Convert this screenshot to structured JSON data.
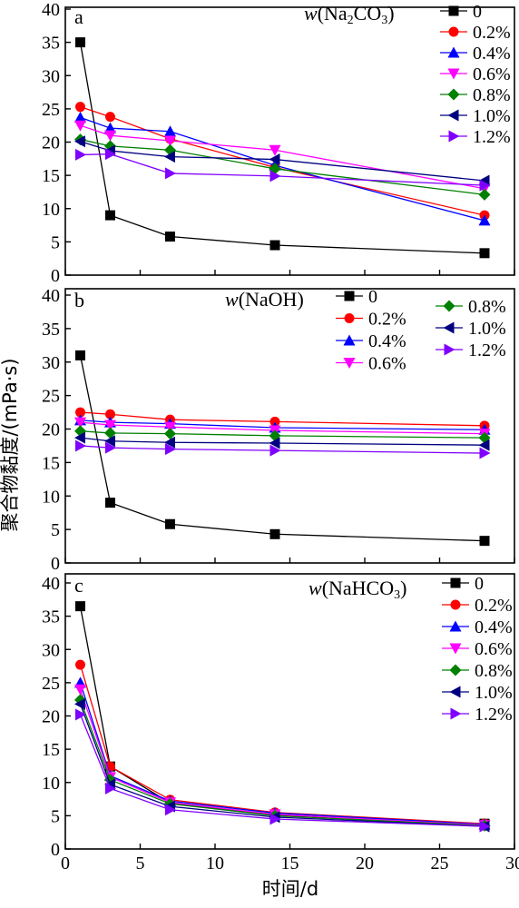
{
  "chart_data": {
    "type": "line",
    "xlabel": "时间/d",
    "ylabel": "聚合物黏度/(mPa·s)",
    "xlim": [
      0,
      30
    ],
    "xticks": [
      "0",
      "5",
      "10",
      "15",
      "20",
      "25",
      "30"
    ],
    "yticks": [
      "0",
      "5",
      "10",
      "15",
      "20",
      "25",
      "30",
      "35",
      "40"
    ],
    "colors": {
      "0": "#000000",
      "0.2%": "#ff0000",
      "0.4%": "#0000ff",
      "0.6%": "#ff00ff",
      "0.8%": "#008000",
      "1.0%": "#000080",
      "1.2%": "#8000ff"
    },
    "markers": {
      "0": "square",
      "0.2%": "circle",
      "0.4%": "triangle-up",
      "0.6%": "triangle-down",
      "0.8%": "diamond",
      "1.0%": "triangle-left",
      "1.2%": "triangle-right"
    },
    "panels": [
      {
        "letter": "a",
        "legend": {
          "prefix": "w",
          "formula": "(Na",
          "sub": "2",
          "suffix": "CO",
          "sub2": "3",
          "end": ")"
        },
        "ylim": [
          0,
          40
        ],
        "x": [
          1,
          3,
          7,
          14,
          28
        ],
        "series": [
          {
            "name": "0",
            "values": [
              35,
              9,
              5.8,
              4.5,
              3.3
            ]
          },
          {
            "name": "0.2%",
            "values": [
              25.3,
              23.8,
              20.5,
              16.2,
              9
            ]
          },
          {
            "name": "0.4%",
            "values": [
              23.7,
              22.1,
              21.6,
              16.5,
              8.2
            ]
          },
          {
            "name": "0.6%",
            "values": [
              22.5,
              21,
              20.2,
              18.8,
              13
            ]
          },
          {
            "name": "0.8%",
            "values": [
              20.4,
              19.4,
              18.8,
              16,
              12.1
            ]
          },
          {
            "name": "1.0%",
            "values": [
              20.1,
              18.7,
              17.8,
              17.4,
              14.2
            ]
          },
          {
            "name": "1.2%",
            "values": [
              18.1,
              18.2,
              15.3,
              14.9,
              13.5
            ]
          }
        ]
      },
      {
        "letter": "b",
        "legend": {
          "prefix": "w",
          "formula": "(NaOH)",
          "sub": "",
          "suffix": "",
          "sub2": "",
          "end": ""
        },
        "ylim": [
          0,
          40
        ],
        "x": [
          1,
          3,
          7,
          14,
          28
        ],
        "series": [
          {
            "name": "0",
            "values": [
              31,
              9,
              5.8,
              4.3,
              3.3
            ]
          },
          {
            "name": "0.2%",
            "values": [
              22.5,
              22.2,
              21.4,
              21.1,
              20.5
            ]
          },
          {
            "name": "0.4%",
            "values": [
              21.3,
              21,
              20.8,
              20.2,
              19.9
            ]
          },
          {
            "name": "0.6%",
            "values": [
              21,
              20.6,
              20.3,
              19.8,
              19.3
            ]
          },
          {
            "name": "0.8%",
            "values": [
              19.7,
              19.4,
              19.3,
              19,
              18.7
            ]
          },
          {
            "name": "1.0%",
            "values": [
              18.7,
              18.2,
              18,
              17.9,
              17.6
            ]
          },
          {
            "name": "1.2%",
            "values": [
              17.5,
              17.2,
              17,
              16.8,
              16.4
            ]
          }
        ]
      },
      {
        "letter": "c",
        "legend": {
          "prefix": "w",
          "formula": "(NaHCO",
          "sub": "3",
          "suffix": ")",
          "sub2": "",
          "end": ""
        },
        "ylim": [
          0,
          40
        ],
        "x": [
          1,
          3,
          7,
          14,
          28
        ],
        "series": [
          {
            "name": "0",
            "values": [
              36.5,
              12.4,
              6.9,
              5.1,
              3.8
            ]
          },
          {
            "name": "0.2%",
            "values": [
              27.7,
              12.4,
              7.4,
              5.5,
              3.8
            ]
          },
          {
            "name": "0.4%",
            "values": [
              25,
              11,
              7.2,
              5.4,
              3.7
            ]
          },
          {
            "name": "0.6%",
            "values": [
              24,
              10.8,
              7,
              5.2,
              3.6
            ]
          },
          {
            "name": "0.8%",
            "values": [
              22.4,
              10.4,
              6.8,
              5,
              3.5
            ]
          },
          {
            "name": "1.0%",
            "values": [
              21.8,
              9.7,
              6.4,
              4.8,
              3.4
            ]
          },
          {
            "name": "1.2%",
            "values": [
              20.2,
              9.1,
              5.9,
              4.5,
              3.4
            ]
          }
        ]
      }
    ]
  }
}
